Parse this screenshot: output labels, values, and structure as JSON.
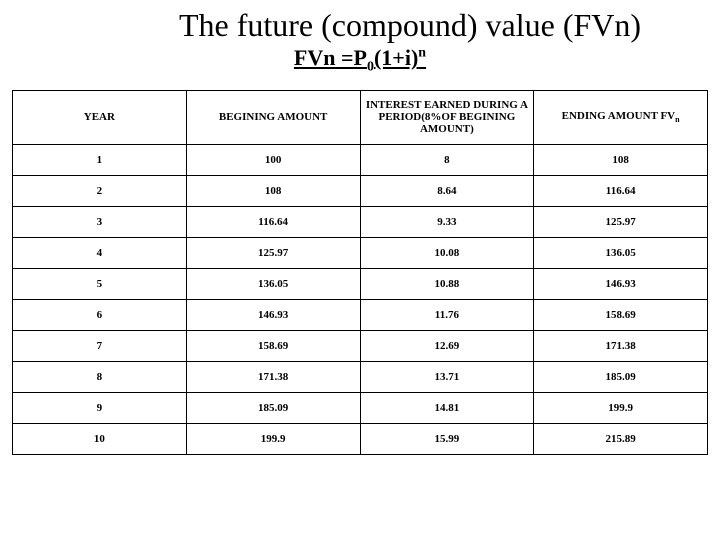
{
  "title": "The future (compound) value (FVn)",
  "formula_parts": {
    "lhs": "FVn =P",
    "sub0": "0",
    "mid": "(1+i)",
    "supn": "n"
  },
  "table": {
    "columns": [
      "YEAR",
      "BEGINING AMOUNT",
      "INTEREST EARNED DURING A PERIOD(8%OF BEGINING AMOUNT)",
      "ENDING AMOUNT FV"
    ],
    "ending_sub": "n",
    "rows": [
      [
        "1",
        "100",
        "8",
        "108"
      ],
      [
        "2",
        "108",
        "8.64",
        "116.64"
      ],
      [
        "3",
        "116.64",
        "9.33",
        "125.97"
      ],
      [
        "4",
        "125.97",
        "10.08",
        "136.05"
      ],
      [
        "5",
        "136.05",
        "10.88",
        "146.93"
      ],
      [
        "6",
        "146.93",
        "11.76",
        "158.69"
      ],
      [
        "7",
        "158.69",
        "12.69",
        "171.38"
      ],
      [
        "8",
        "171.38",
        "13.71",
        "185.09"
      ],
      [
        "9",
        "185.09",
        "14.81",
        "199.9"
      ],
      [
        "10",
        "199.9",
        "15.99",
        "215.89"
      ]
    ],
    "column_widths": [
      "25%",
      "25%",
      "25%",
      "25%"
    ]
  },
  "colors": {
    "background": "#ffffff",
    "text": "#000000",
    "border": "#000000"
  }
}
